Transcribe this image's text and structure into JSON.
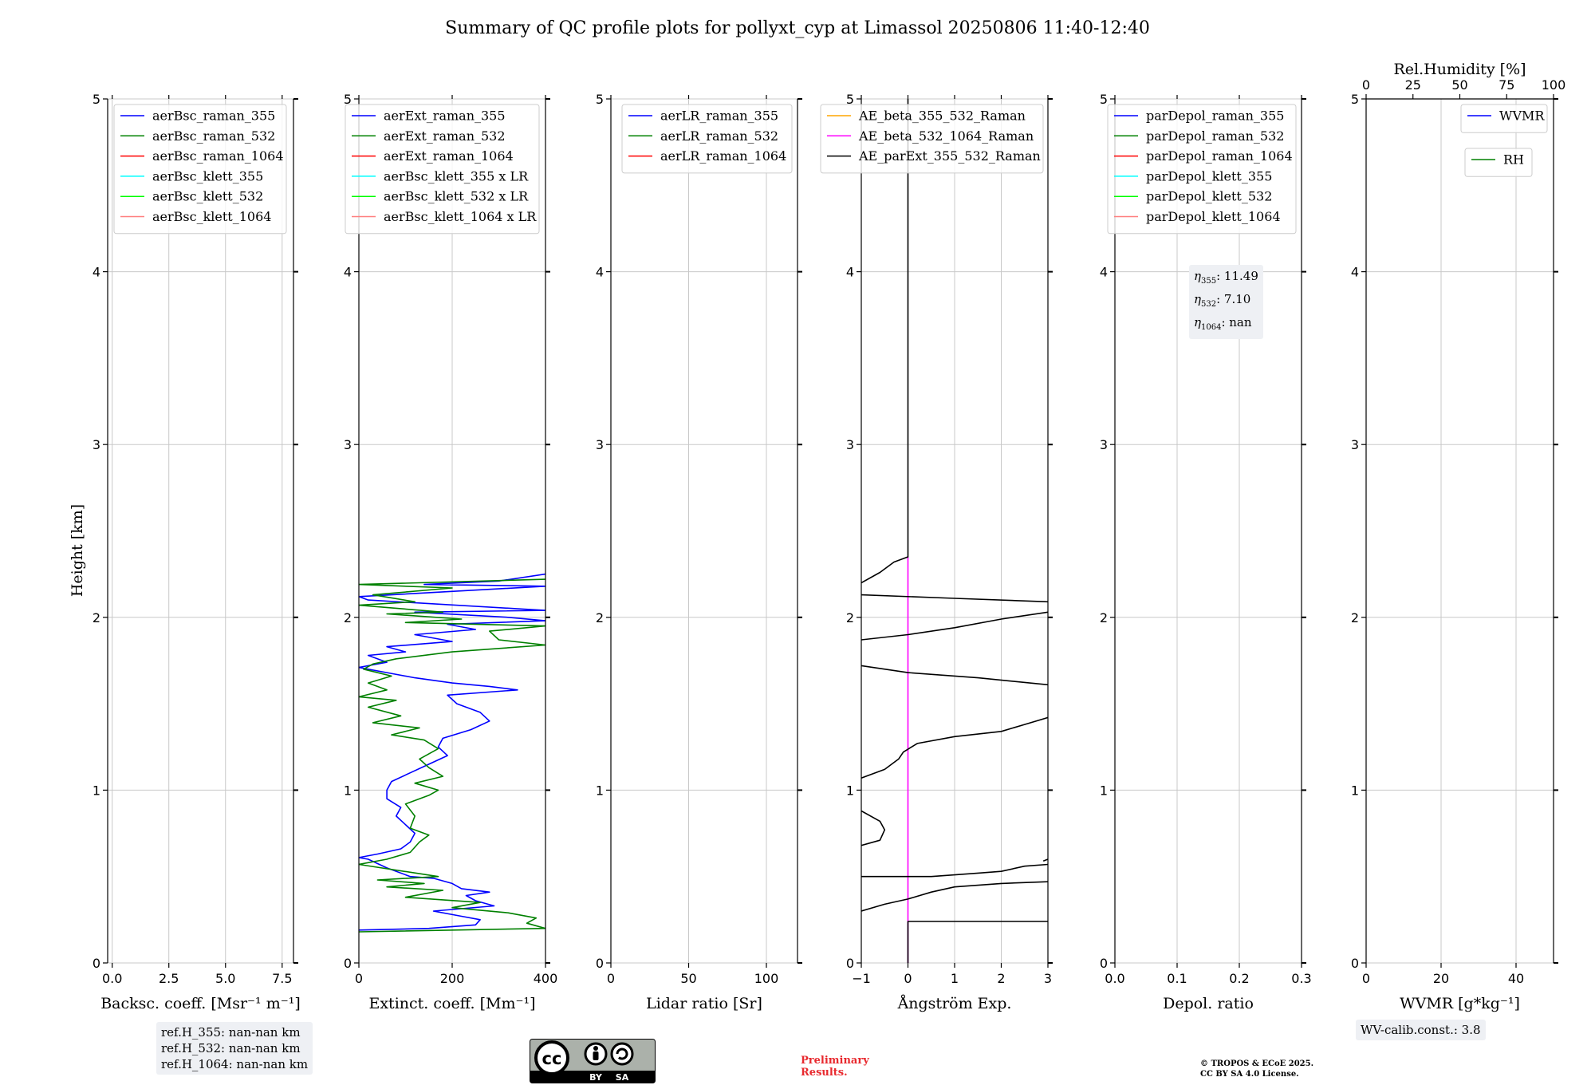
{
  "title": "Summary of QC profile plots for pollyxt_cyp at Limassol 20250806 11:40-12:40",
  "y_label": "Height [km]",
  "colors": {
    "raman_355": "#0000ff",
    "raman_532": "#008000",
    "raman_1064": "#ff0000",
    "klett_355": "#00ffff",
    "klett_532": "#00ff00",
    "klett_1064": "#ff7f7f",
    "ae_355_532": "#ffa500",
    "ae_532_1064": "#ff00ff",
    "ae_ext": "#000000",
    "grid": "#c8c8c8"
  },
  "chart_data": [
    {
      "id": "bsc",
      "type": "line",
      "xlabel": "Backsc. coeff. [Msr⁻¹ m⁻¹]",
      "xlim": [
        -0.2,
        8.0
      ],
      "ylim": [
        0,
        5
      ],
      "xticks": [
        0.0,
        2.5,
        5.0,
        7.5
      ],
      "xtick_labels": [
        "0.0",
        "2.5",
        "5.0",
        "7.5"
      ],
      "yticks": [
        0,
        1,
        2,
        3,
        4,
        5
      ],
      "ytick_labels": [
        "0",
        "1",
        "2",
        "3",
        "4",
        "5"
      ],
      "legend": [
        {
          "label": "aerBsc_raman_355",
          "color": "#0000ff"
        },
        {
          "label": "aerBsc_raman_532",
          "color": "#008000"
        },
        {
          "label": "aerBsc_raman_1064",
          "color": "#ff0000"
        },
        {
          "label": "aerBsc_klett_355",
          "color": "#00ffff"
        },
        {
          "label": "aerBsc_klett_532",
          "color": "#00ff00"
        },
        {
          "label": "aerBsc_klett_1064",
          "color": "#ff7f7f"
        }
      ],
      "series": []
    },
    {
      "id": "ext",
      "type": "line",
      "xlabel": "Extinct. coeff. [Mm⁻¹]",
      "xlim": [
        0,
        400
      ],
      "ylim": [
        0,
        5
      ],
      "xticks": [
        0,
        200,
        400
      ],
      "xtick_labels": [
        "0",
        "200",
        "400"
      ],
      "yticks": [
        0,
        1,
        2,
        3,
        4,
        5
      ],
      "ytick_labels": [
        "0",
        "1",
        "2",
        "3",
        "4",
        "5"
      ],
      "legend": [
        {
          "label": "aerExt_raman_355",
          "color": "#0000ff"
        },
        {
          "label": "aerExt_raman_532",
          "color": "#008000"
        },
        {
          "label": "aerExt_raman_1064",
          "color": "#ff0000"
        },
        {
          "label": "aerBsc_klett_355 x LR",
          "color": "#00ffff"
        },
        {
          "label": "aerBsc_klett_532 x LR",
          "color": "#00ff00"
        },
        {
          "label": "aerBsc_klett_1064 x LR",
          "color": "#ff7f7f"
        }
      ],
      "series": [
        {
          "name": "aerExt_raman_355",
          "color": "#0000ff",
          "points": [
            [
              0,
              0.19
            ],
            [
              150,
              0.2
            ],
            [
              250,
              0.22
            ],
            [
              260,
              0.25
            ],
            [
              220,
              0.27
            ],
            [
              160,
              0.3
            ],
            [
              290,
              0.33
            ],
            [
              250,
              0.36
            ],
            [
              230,
              0.39
            ],
            [
              280,
              0.41
            ],
            [
              220,
              0.43
            ],
            [
              200,
              0.46
            ],
            [
              160,
              0.49
            ],
            [
              110,
              0.5
            ],
            [
              60,
              0.55
            ],
            [
              20,
              0.6
            ],
            [
              0,
              0.61
            ],
            [
              40,
              0.63
            ],
            [
              90,
              0.66
            ],
            [
              110,
              0.7
            ],
            [
              120,
              0.75
            ],
            [
              100,
              0.8
            ],
            [
              80,
              0.85
            ],
            [
              90,
              0.9
            ],
            [
              60,
              0.95
            ],
            [
              60,
              1.0
            ],
            [
              70,
              1.05
            ],
            [
              110,
              1.1
            ],
            [
              150,
              1.15
            ],
            [
              190,
              1.2
            ],
            [
              170,
              1.25
            ],
            [
              180,
              1.3
            ],
            [
              240,
              1.35
            ],
            [
              280,
              1.4
            ],
            [
              260,
              1.45
            ],
            [
              210,
              1.5
            ],
            [
              190,
              1.55
            ],
            [
              340,
              1.58
            ],
            [
              280,
              1.6
            ],
            [
              200,
              1.62
            ],
            [
              120,
              1.65
            ],
            [
              60,
              1.68
            ],
            [
              20,
              1.7
            ],
            [
              0,
              1.71
            ],
            [
              60,
              1.74
            ],
            [
              20,
              1.78
            ],
            [
              100,
              1.8
            ],
            [
              60,
              1.83
            ],
            [
              200,
              1.86
            ],
            [
              120,
              1.9
            ],
            [
              250,
              1.93
            ],
            [
              190,
              1.96
            ],
            [
              400,
              1.98
            ],
            [
              320,
              2.0
            ],
            [
              120,
              2.03
            ],
            [
              400,
              2.04
            ],
            [
              20,
              2.1
            ],
            [
              0,
              2.12
            ],
            [
              400,
              2.18
            ],
            [
              140,
              2.19
            ],
            [
              300,
              2.21
            ],
            [
              400,
              2.25
            ]
          ]
        },
        {
          "name": "aerExt_raman_532",
          "color": "#008000",
          "points": [
            [
              0,
              0.18
            ],
            [
              400,
              0.2
            ],
            [
              360,
              0.23
            ],
            [
              380,
              0.26
            ],
            [
              320,
              0.29
            ],
            [
              200,
              0.32
            ],
            [
              260,
              0.35
            ],
            [
              100,
              0.38
            ],
            [
              180,
              0.42
            ],
            [
              60,
              0.44
            ],
            [
              140,
              0.46
            ],
            [
              40,
              0.48
            ],
            [
              170,
              0.5
            ],
            [
              0,
              0.57
            ],
            [
              60,
              0.6
            ],
            [
              110,
              0.64
            ],
            [
              130,
              0.7
            ],
            [
              150,
              0.74
            ],
            [
              110,
              0.78
            ],
            [
              120,
              0.85
            ],
            [
              100,
              0.92
            ],
            [
              150,
              0.97
            ],
            [
              170,
              1.0
            ],
            [
              120,
              1.04
            ],
            [
              180,
              1.08
            ],
            [
              150,
              1.13
            ],
            [
              130,
              1.18
            ],
            [
              170,
              1.24
            ],
            [
              140,
              1.29
            ],
            [
              70,
              1.32
            ],
            [
              130,
              1.36
            ],
            [
              30,
              1.39
            ],
            [
              90,
              1.43
            ],
            [
              20,
              1.48
            ],
            [
              80,
              1.52
            ],
            [
              0,
              1.54
            ],
            [
              60,
              1.58
            ],
            [
              20,
              1.62
            ],
            [
              70,
              1.66
            ],
            [
              10,
              1.7
            ],
            [
              30,
              1.73
            ],
            [
              80,
              1.76
            ],
            [
              200,
              1.8
            ],
            [
              400,
              1.84
            ],
            [
              300,
              1.87
            ],
            [
              280,
              1.92
            ],
            [
              400,
              1.95
            ],
            [
              100,
              1.97
            ],
            [
              220,
              1.99
            ],
            [
              60,
              2.02
            ],
            [
              180,
              2.03
            ],
            [
              0,
              2.07
            ],
            [
              120,
              2.09
            ],
            [
              30,
              2.13
            ],
            [
              200,
              2.17
            ],
            [
              0,
              2.19
            ],
            [
              400,
              2.22
            ]
          ]
        }
      ]
    },
    {
      "id": "lr",
      "type": "line",
      "xlabel": "Lidar ratio [Sr]",
      "xlim": [
        0,
        120
      ],
      "ylim": [
        0,
        5
      ],
      "xticks": [
        0,
        50,
        100
      ],
      "xtick_labels": [
        "0",
        "50",
        "100"
      ],
      "yticks": [
        0,
        1,
        2,
        3,
        4,
        5
      ],
      "ytick_labels": [
        "0",
        "1",
        "2",
        "3",
        "4",
        "5"
      ],
      "legend": [
        {
          "label": "aerLR_raman_355",
          "color": "#0000ff"
        },
        {
          "label": "aerLR_raman_532",
          "color": "#008000"
        },
        {
          "label": "aerLR_raman_1064",
          "color": "#ff0000"
        }
      ],
      "series": []
    },
    {
      "id": "ae",
      "type": "line",
      "xlabel": "Ångström Exp.",
      "xlim": [
        -1,
        3
      ],
      "ylim": [
        0,
        5
      ],
      "xticks": [
        -1,
        0,
        1,
        2,
        3
      ],
      "xtick_labels": [
        "−1",
        "0",
        "1",
        "2",
        "3"
      ],
      "yticks": [
        0,
        1,
        2,
        3,
        4,
        5
      ],
      "ytick_labels": [
        "0",
        "1",
        "2",
        "3",
        "4",
        "5"
      ],
      "legend": [
        {
          "label": "AE_beta_355_532_Raman",
          "color": "#ffa500"
        },
        {
          "label": "AE_beta_532_1064_Raman",
          "color": "#ff00ff"
        },
        {
          "label": "AE_parExt_355_532_Raman",
          "color": "#000000"
        }
      ],
      "series": [
        {
          "name": "AE_beta_532_1064_Raman",
          "color": "#ff00ff",
          "points": [
            [
              0,
              0
            ],
            [
              0,
              2.35
            ]
          ]
        },
        {
          "name": "AE_parExt_355_532_Raman",
          "color": "#000000",
          "segments": [
            [
              [
                0,
                0
              ],
              [
                0,
                0.24
              ],
              [
                3,
                0.24
              ]
            ],
            [
              [
                -1,
                0.3
              ],
              [
                -0.5,
                0.34
              ],
              [
                0,
                0.37
              ],
              [
                0.5,
                0.41
              ],
              [
                1,
                0.44
              ],
              [
                2,
                0.46
              ],
              [
                3,
                0.47
              ]
            ],
            [
              [
                -1,
                0.5
              ],
              [
                0.5,
                0.5
              ],
              [
                1.5,
                0.52
              ],
              [
                2,
                0.53
              ],
              [
                2.5,
                0.56
              ],
              [
                3,
                0.57
              ]
            ],
            [
              [
                2.9,
                0.59
              ],
              [
                3,
                0.6
              ]
            ],
            [
              [
                -1,
                0.68
              ],
              [
                -0.6,
                0.71
              ],
              [
                -0.5,
                0.77
              ],
              [
                -0.6,
                0.82
              ],
              [
                -1,
                0.88
              ]
            ],
            [
              [
                -1,
                1.07
              ],
              [
                -0.5,
                1.12
              ],
              [
                -0.2,
                1.18
              ],
              [
                -0.1,
                1.22
              ],
              [
                0.2,
                1.27
              ],
              [
                1,
                1.31
              ],
              [
                2,
                1.34
              ],
              [
                2.5,
                1.38
              ],
              [
                3,
                1.42
              ]
            ],
            [
              [
                -1,
                1.72
              ],
              [
                0,
                1.68
              ],
              [
                1.5,
                1.65
              ],
              [
                3,
                1.61
              ]
            ],
            [
              [
                -1,
                1.87
              ],
              [
                0,
                1.9
              ],
              [
                1,
                1.94
              ],
              [
                2,
                1.99
              ],
              [
                3,
                2.03
              ]
            ],
            [
              [
                -1,
                2.13
              ],
              [
                1,
                2.11
              ],
              [
                3,
                2.09
              ]
            ],
            [
              [
                -1,
                2.2
              ],
              [
                -0.6,
                2.26
              ],
              [
                -0.3,
                2.32
              ],
              [
                0,
                2.35
              ],
              [
                0,
                5
              ]
            ]
          ]
        }
      ]
    },
    {
      "id": "depol",
      "type": "line",
      "xlabel": "Depol. ratio",
      "xlim": [
        0,
        0.3
      ],
      "ylim": [
        0,
        5
      ],
      "xticks": [
        0.0,
        0.1,
        0.2,
        0.3
      ],
      "xtick_labels": [
        "0.0",
        "0.1",
        "0.2",
        "0.3"
      ],
      "yticks": [
        0,
        1,
        2,
        3,
        4,
        5
      ],
      "ytick_labels": [
        "0",
        "1",
        "2",
        "3",
        "4",
        "5"
      ],
      "legend": [
        {
          "label": "parDepol_raman_355",
          "color": "#0000ff"
        },
        {
          "label": "parDepol_raman_532",
          "color": "#008000"
        },
        {
          "label": "parDepol_raman_1064",
          "color": "#ff0000"
        },
        {
          "label": "parDepol_klett_355",
          "color": "#00ffff"
        },
        {
          "label": "parDepol_klett_532",
          "color": "#00ff00"
        },
        {
          "label": "parDepol_klett_1064",
          "color": "#ff7f7f"
        }
      ],
      "series": []
    },
    {
      "id": "wv",
      "type": "line",
      "xlabel": "WVMR [g*kg⁻¹]",
      "xlim": [
        0,
        50
      ],
      "ylim": [
        0,
        5
      ],
      "xticks": [
        0,
        20,
        40
      ],
      "xtick_labels": [
        "0",
        "20",
        "40"
      ],
      "yticks": [
        0,
        1,
        2,
        3,
        4,
        5
      ],
      "ytick_labels": [
        "0",
        "1",
        "2",
        "3",
        "4",
        "5"
      ],
      "top_axis": {
        "label": "Rel.Humidity [%]",
        "xlim": [
          0,
          100
        ],
        "xticks": [
          0,
          25,
          50,
          75,
          100
        ],
        "xtick_labels": [
          "0",
          "25",
          "50",
          "75",
          "100"
        ]
      },
      "legend": [
        {
          "label": "WVMR",
          "color": "#0000ff"
        }
      ],
      "legend2": [
        {
          "label": "RH",
          "color": "#008000"
        }
      ],
      "series": []
    }
  ],
  "eta_box": {
    "lines": [
      {
        "sym": "η",
        "sub": "355",
        "value": ": 11.49"
      },
      {
        "sym": "η",
        "sub": "532",
        "value": ": 7.10"
      },
      {
        "sym": "η",
        "sub": "1064",
        "value": ": nan"
      }
    ]
  },
  "ref_box": {
    "lines": [
      "ref.H_355: nan-nan km",
      "ref.H_532: nan-nan km",
      "ref.H_1064: nan-nan km"
    ]
  },
  "wv_calib": "WV-calib.const.: 3.8",
  "preliminary": [
    "Preliminary",
    "Results."
  ],
  "copyright": [
    "© TROPOS & ECoE 2025.",
    "CC BY SA 4.0 License."
  ],
  "cc_badge": {
    "cc": "cc",
    "by": "BY",
    "sa": "SA"
  }
}
